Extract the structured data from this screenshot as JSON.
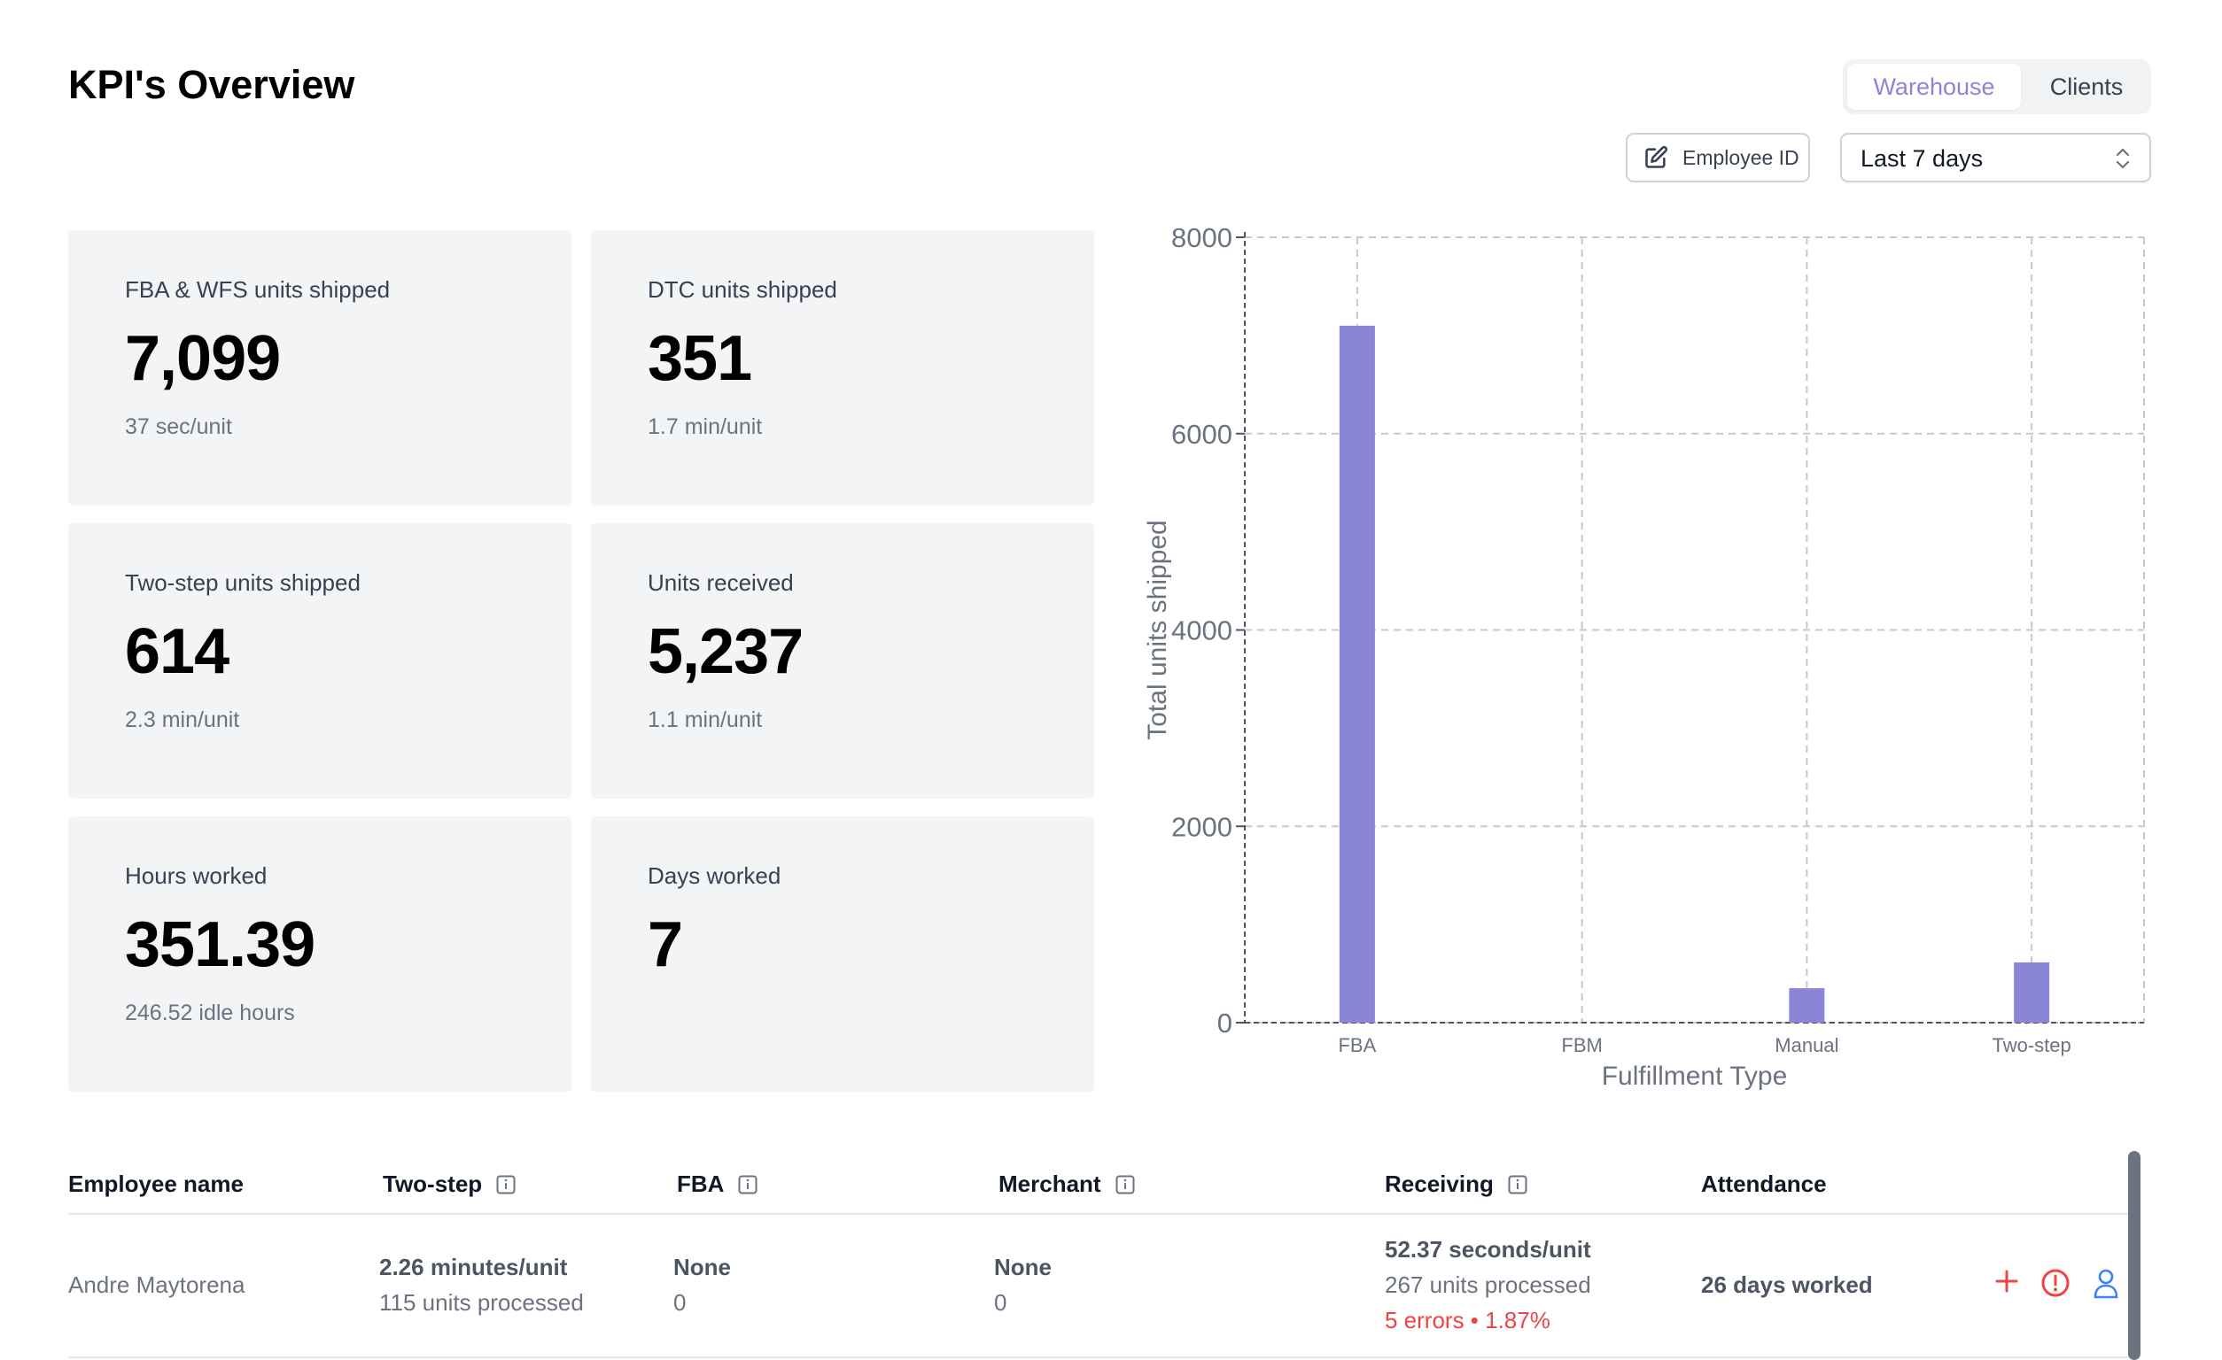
{
  "header": {
    "title": "KPI's Overview",
    "segment": {
      "options": [
        "Warehouse",
        "Clients"
      ],
      "selected": "Warehouse"
    },
    "employee_button": "Employee ID",
    "date_range": {
      "selected": "Last 7 days"
    }
  },
  "cards": [
    {
      "label": "FBA & WFS units shipped",
      "value": "7,099",
      "sub": "37 sec/unit"
    },
    {
      "label": "DTC units shipped",
      "value": "351",
      "sub": "1.7 min/unit"
    },
    {
      "label": "Two-step units shipped",
      "value": "614",
      "sub": "2.3 min/unit"
    },
    {
      "label": "Units received",
      "value": "5,237",
      "sub": "1.1 min/unit"
    },
    {
      "label": "Hours worked",
      "value": "351.39",
      "sub": "246.52 idle hours"
    },
    {
      "label": "Days worked",
      "value": "7",
      "sub": ""
    }
  ],
  "chart_data": {
    "type": "bar",
    "categories": [
      "FBA",
      "FBM",
      "Manual",
      "Two-step"
    ],
    "values": [
      7099,
      0,
      351,
      614
    ],
    "xlabel": "Fulfillment Type",
    "ylabel": "Total units shipped",
    "ylim": [
      0,
      8000
    ],
    "yticks": [
      0,
      2000,
      4000,
      6000,
      8000
    ],
    "grid": true,
    "bar_color": "#8b85d8"
  },
  "table": {
    "headers": [
      "Employee name",
      "Two-step",
      "FBA",
      "Merchant",
      "Receiving",
      "Attendance"
    ],
    "rows": [
      {
        "name": "Andre Maytorena",
        "two_step_rate": "2.26 minutes/unit",
        "two_step_units": "115 units processed",
        "fba_rate": "None",
        "fba_units": "0",
        "merchant_rate": "None",
        "merchant_units": "0",
        "receiving_rate": "52.37 seconds/unit",
        "receiving_units": "267 units processed",
        "receiving_errors": "5 errors • 1.87%",
        "attendance": "26 days worked"
      }
    ]
  },
  "colors": {
    "accent": "#8b86d8",
    "danger": "#ef4444",
    "link": "#3b82f6"
  }
}
